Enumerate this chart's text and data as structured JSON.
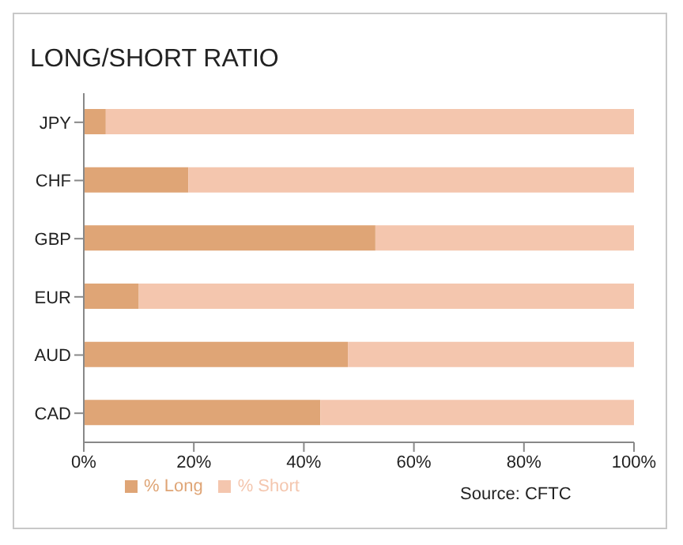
{
  "chart_data": {
    "type": "bar",
    "orientation": "horizontal",
    "stacked": true,
    "title": "LONG/SHORT RATIO",
    "categories": [
      "JPY",
      "CHF",
      "GBP",
      "EUR",
      "AUD",
      "CAD"
    ],
    "series": [
      {
        "name": "% Long",
        "color": "#dfa576",
        "values": [
          4,
          19,
          53,
          10,
          48,
          43
        ]
      },
      {
        "name": "% Short",
        "color": "#f4c6ae",
        "values": [
          96,
          81,
          47,
          90,
          52,
          57
        ]
      }
    ],
    "xlim": [
      0,
      100
    ],
    "xticks": [
      {
        "value": 0,
        "label": "0%"
      },
      {
        "value": 20,
        "label": "20%"
      },
      {
        "value": 40,
        "label": "40%"
      },
      {
        "value": 60,
        "label": "60%"
      },
      {
        "value": 80,
        "label": "80%"
      },
      {
        "value": 100,
        "label": "100%"
      }
    ],
    "grid": false,
    "legend": "bottom",
    "annotations": [
      "Source: CFTC"
    ]
  }
}
